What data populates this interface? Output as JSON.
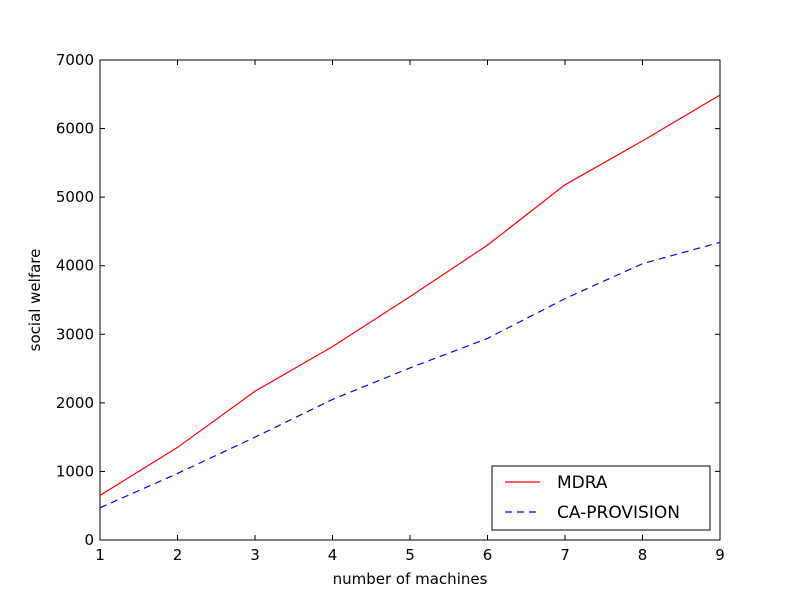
{
  "chart_data": {
    "type": "line",
    "title": "",
    "xlabel": "number of machines",
    "ylabel": "social welfare",
    "xlim": [
      1,
      9
    ],
    "ylim": [
      0,
      7000
    ],
    "xticks": [
      1,
      2,
      3,
      4,
      5,
      6,
      7,
      8,
      9
    ],
    "yticks": [
      0,
      1000,
      2000,
      3000,
      4000,
      5000,
      6000,
      7000
    ],
    "x": [
      1,
      2,
      3,
      4,
      5,
      6,
      7,
      8,
      9
    ],
    "series": [
      {
        "name": "MDRA",
        "values": [
          650,
          1350,
          2170,
          2820,
          3550,
          4300,
          5180,
          5820,
          6490
        ],
        "color": "#ff0000",
        "style": "solid"
      },
      {
        "name": "CA-PROVISION",
        "values": [
          470,
          970,
          1500,
          2050,
          2510,
          2940,
          3520,
          4030,
          4340
        ],
        "color": "#0000ff",
        "style": "dashed"
      }
    ],
    "grid": false,
    "legend_position": "bottom-right"
  }
}
